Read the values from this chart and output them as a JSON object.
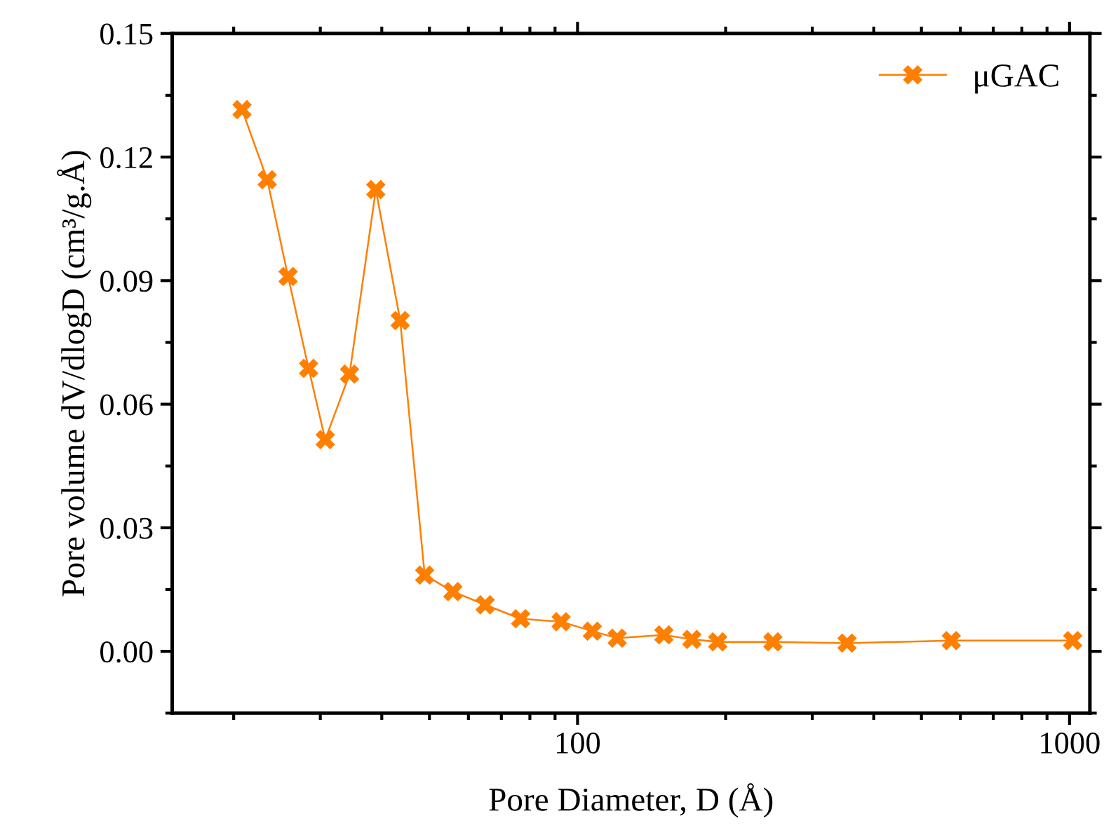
{
  "chart_data": {
    "type": "line",
    "xlabel": "Pore Diameter, D (Å)",
    "ylabel": "Pore volume dV/dlogD (cm³/g.Å)",
    "x": [
      20.8,
      23.4,
      25.8,
      28.4,
      30.7,
      34.4,
      38.9,
      43.6,
      48.9,
      55.8,
      64.9,
      76.6,
      92.6,
      107.2,
      120.4,
      149.8,
      170.8,
      192.7,
      249.5,
      353,
      575,
      1015
    ],
    "series": [
      {
        "name": "μGAC",
        "color": "#ff7f00",
        "values": [
          0.1315,
          0.1145,
          0.091,
          0.0687,
          0.0514,
          0.0673,
          0.1121,
          0.0803,
          0.0185,
          0.0145,
          0.0113,
          0.0079,
          0.0072,
          0.0049,
          0.0032,
          0.004,
          0.0029,
          0.0023,
          0.0023,
          0.002,
          0.0026,
          0.0026
        ]
      }
    ],
    "log": "x",
    "xlim": [
      15,
      1100
    ],
    "xticks": [
      100,
      1000
    ],
    "ylim": [
      -0.015,
      0.15
    ],
    "yticks": [
      {
        "value": 0,
        "label": "0.00"
      },
      0.03,
      0.06,
      0.09,
      0.12,
      0.15
    ],
    "marker": "cross",
    "line_style": "solid",
    "legend": "top right",
    "grid": false
  }
}
